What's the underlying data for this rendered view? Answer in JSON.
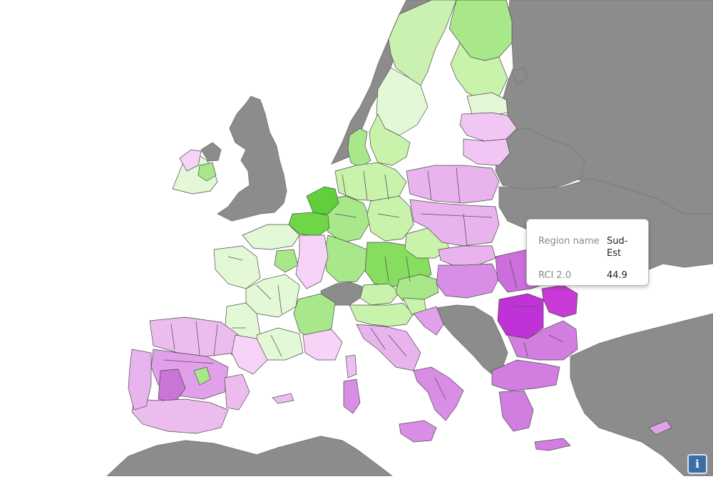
{
  "map": {
    "colors": {
      "background": "#ffffff",
      "non_member": "#8c8c8c",
      "green_light": "#e3f8d6",
      "green_mid": "#c9f2aa",
      "green_strong": "#a3e683",
      "green_dark": "#5fcf3a",
      "pink_light": "#f7d3f7",
      "pink_mid": "#eab5ef",
      "magenta": "#d27ee0",
      "magenta_strong": "#c14fd4",
      "magenta_dark": "#c032d8",
      "highlight_outline": "#4fc8f0"
    },
    "highlighted_region": "Sud-Est"
  },
  "tooltip": {
    "name_label": "Region name",
    "name_value": "Sud-Est",
    "metric_label": "RCI 2.0",
    "metric_value": "44.9"
  },
  "info_button": {
    "label": "i",
    "icon": "info-icon"
  }
}
